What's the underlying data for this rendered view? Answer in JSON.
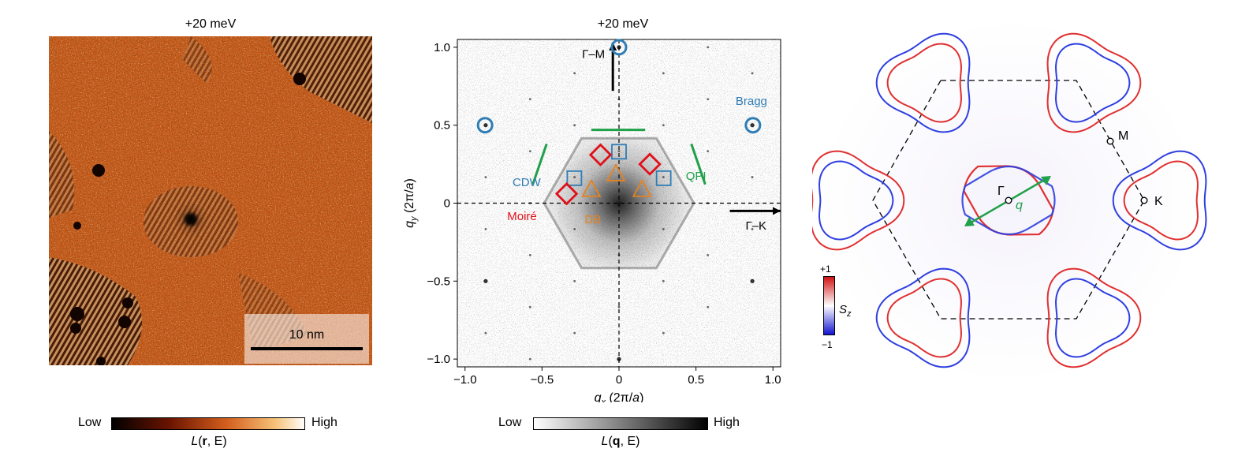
{
  "panel_a": {
    "title": "+20 meV",
    "scalebar_label": "10 nm",
    "colorbar": {
      "low": "Low",
      "high": "High",
      "caption_fn": "L",
      "caption_var": "r",
      "caption_rest": ", E)"
    },
    "colors": {
      "base": "#d2601f",
      "dark": "#1a0500",
      "light": "#fbeec8"
    }
  },
  "panel_b": {
    "title": "+20 meV",
    "colorbar": {
      "low": "Low",
      "high": "High",
      "caption_fn": "L",
      "caption_var": "q",
      "caption_rest": ", E)"
    },
    "chart_data": {
      "type": "scatter",
      "title": "+20 meV",
      "xlabel": "q_x (2π/a)",
      "ylabel": "q_y (2π/a)",
      "xlim": [
        -1.05,
        1.05
      ],
      "ylim": [
        -1.05,
        1.05
      ],
      "xticks": [
        "−1.0",
        "−0.5",
        "0",
        "0.5",
        "1.0"
      ],
      "yticks": [
        "−1.0",
        "−0.5",
        "0",
        "0.5",
        "1.0"
      ],
      "tick_values": [
        -1.0,
        -0.5,
        0,
        0.5,
        1.0
      ],
      "arrows": [
        {
          "label": "Γ–M",
          "from": [
            -0.04,
            0.72
          ],
          "to": [
            -0.04,
            1.03
          ]
        },
        {
          "label": "Γ–K",
          "from": [
            0.72,
            -0.05
          ],
          "to": [
            1.05,
            -0.05
          ]
        }
      ],
      "series": [
        {
          "name": "Bragg",
          "marker": "circle",
          "color": "#2f7db5",
          "points": [
            [
              0.0,
              1.0
            ],
            [
              -0.87,
              0.5
            ],
            [
              0.87,
              0.5
            ]
          ]
        },
        {
          "name": "CDW",
          "marker": "square",
          "color": "#2f7db5",
          "points": [
            [
              0.0,
              0.33
            ],
            [
              -0.29,
              0.16
            ],
            [
              0.29,
              0.16
            ]
          ]
        },
        {
          "name": "Moiré",
          "marker": "diamond",
          "color": "#e0101a",
          "points": [
            [
              -0.12,
              0.31
            ],
            [
              0.2,
              0.25
            ],
            [
              -0.34,
              0.06
            ]
          ]
        },
        {
          "name": "DB",
          "marker": "triangle",
          "color": "#e8821e",
          "points": [
            [
              -0.02,
              0.19
            ],
            [
              -0.18,
              0.09
            ],
            [
              0.15,
              0.09
            ]
          ]
        }
      ],
      "qpi_lines": {
        "label": "QPI",
        "color": "#21a04a",
        "segments": [
          [
            [
              -0.18,
              0.47
            ],
            [
              0.17,
              0.47
            ]
          ],
          [
            [
              -0.47,
              0.38
            ],
            [
              -0.56,
              0.12
            ]
          ],
          [
            [
              0.47,
              0.38
            ],
            [
              0.56,
              0.12
            ]
          ]
        ]
      },
      "labels": {
        "bragg": "Bragg",
        "cdw": "CDW",
        "moire": "Moiré",
        "db": "DB",
        "qpi": "QPI"
      }
    }
  },
  "panel_c": {
    "labels": {
      "gamma": "Γ",
      "q": "q",
      "m": "M",
      "k": "K"
    },
    "colorbar": {
      "top": "+1",
      "bottom": "−1",
      "symbol": "S",
      "subscript": "z"
    },
    "colors": {
      "spin_up": "#e03030",
      "spin_down": "#2f3fe0",
      "arrow": "#21a04a"
    }
  }
}
